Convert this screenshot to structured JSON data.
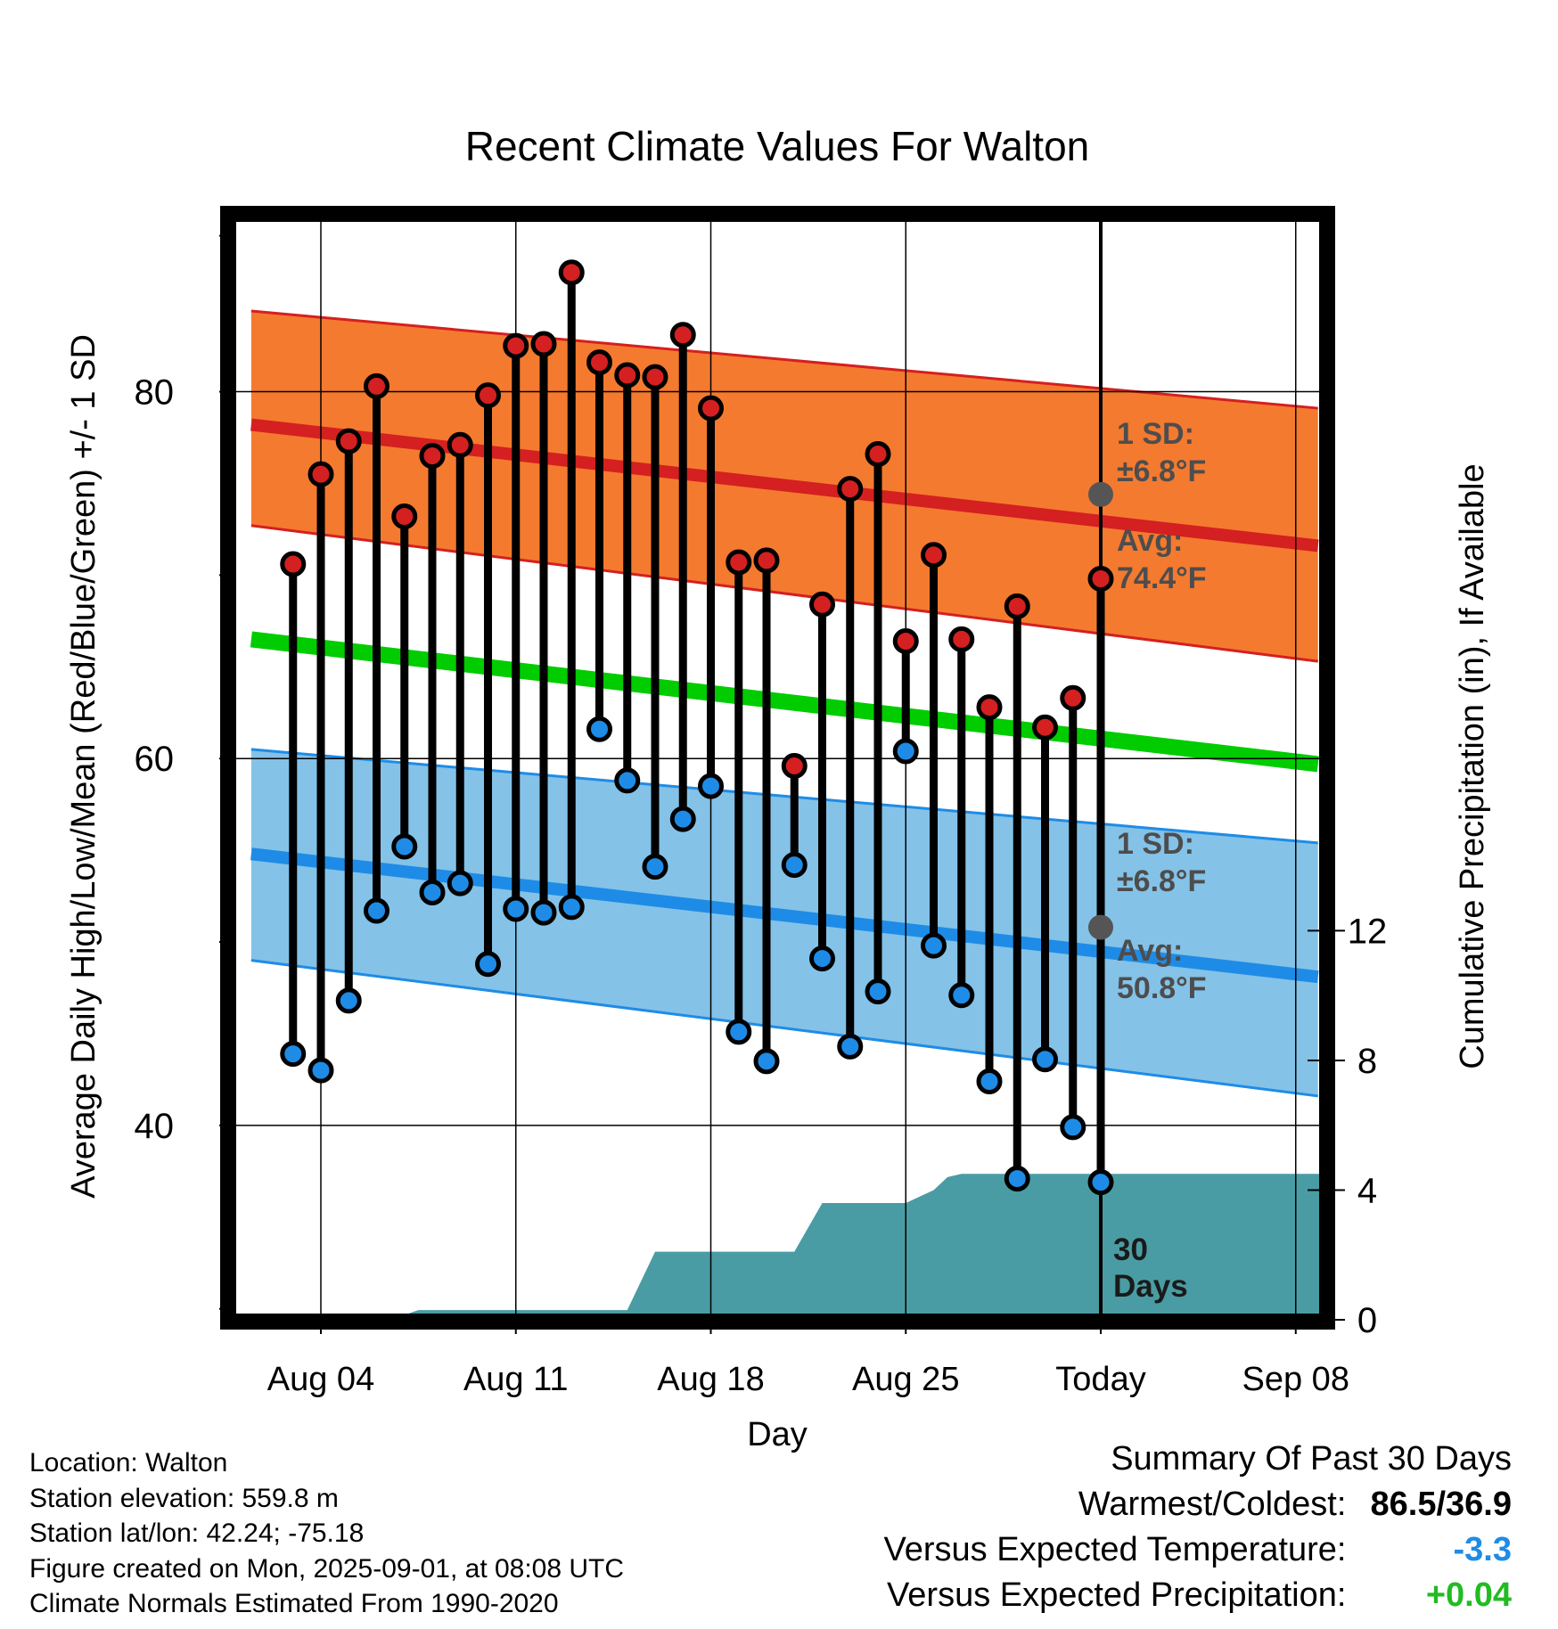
{
  "chart_data": {
    "type": "line",
    "title": "Recent Climate Values For Walton",
    "xlabel": "Day",
    "ylabel": "Average Daily High/Low/Mean (Red/Blue/Green) +/- 1 SD",
    "ylabel_right": "Cumulative Precipitation (in), If Available",
    "x_ticks": [
      "Aug 04",
      "Aug 11",
      "Aug 18",
      "Aug 25",
      "Today",
      "Sep 08"
    ],
    "y_ticks": [
      40,
      60,
      80
    ],
    "y_right_ticks": [
      0,
      4,
      8,
      12
    ],
    "ylim": [
      29.5,
      89.5
    ],
    "ylim_right": [
      0,
      34
    ],
    "days_label": "30\nDays",
    "normals": {
      "x": [
        -2.5,
        35.8
      ],
      "high_mean": [
        78.2,
        71.6
      ],
      "high_sd_upper": [
        84.4,
        79.1
      ],
      "high_sd_lower": [
        72.7,
        65.3
      ],
      "low_mean": [
        54.8,
        48.1
      ],
      "low_sd_upper": [
        60.5,
        55.4
      ],
      "low_sd_lower": [
        49.0,
        41.6
      ],
      "daily_mean": [
        66.5,
        59.7
      ]
    },
    "today_annotations": {
      "high": {
        "sd_label": "1 SD:",
        "sd_value": "±6.8°F",
        "avg_label": "Avg:",
        "avg_value": "74.4°F",
        "value": 74.4
      },
      "low": {
        "sd_label": "1 SD:",
        "sd_value": "±6.8°F",
        "avg_label": "Avg:",
        "avg_value": "50.8°F",
        "value": 50.8
      }
    },
    "series": [
      {
        "name": "High",
        "color": "#d42020",
        "values": [
          70.6,
          75.5,
          77.3,
          80.3,
          73.2,
          76.5,
          77.1,
          79.8,
          82.5,
          82.6,
          86.5,
          81.6,
          80.9,
          80.8,
          83.1,
          79.1,
          70.7,
          70.8,
          59.6,
          68.4,
          74.7,
          76.6,
          66.4,
          71.1,
          66.5,
          62.8,
          68.3,
          61.7,
          63.3,
          69.8
        ]
      },
      {
        "name": "Low",
        "color": "#1e8ce6",
        "values": [
          43.9,
          43.0,
          46.8,
          51.7,
          55.2,
          52.7,
          53.2,
          48.8,
          51.8,
          51.6,
          51.9,
          61.6,
          58.8,
          54.1,
          56.7,
          58.5,
          45.1,
          43.5,
          54.2,
          49.1,
          44.3,
          47.3,
          60.4,
          49.8,
          47.1,
          42.4,
          37.1,
          43.6,
          39.9,
          36.9
        ]
      }
    ],
    "precip": {
      "color": "#4a9ca4",
      "x": [
        2.5,
        3.5,
        8.0,
        9.0,
        10.0,
        11.0,
        12.0,
        15.5,
        16.0,
        17.0,
        18.0,
        19.0,
        21.0,
        22.0,
        22.5,
        23.0,
        24.0,
        27.5
      ],
      "values": [
        0.0,
        0.3,
        0.3,
        0.3,
        0.3,
        0.3,
        2.1,
        2.1,
        2.1,
        2.1,
        3.6,
        3.6,
        3.6,
        4.0,
        4.4,
        4.5,
        4.5,
        4.5
      ]
    }
  },
  "info": {
    "location": "Location: Walton",
    "elevation": "Station elevation: 559.8 m",
    "latlon": "Station lat/lon: 42.24; -75.18",
    "created": "Figure created on Mon, 2025-09-01, at 08:08 UTC",
    "normals": "Climate Normals Estimated From 1990-2020"
  },
  "summary": {
    "title": "Summary Of Past 30 Days",
    "warmest_label": "Warmest/Coldest:",
    "warmest_value": "86.5/36.9",
    "temp_label": "Versus Expected Temperature:",
    "temp_value": "-3.3",
    "temp_color": "#1e8ce6",
    "precip_label": "Versus Expected Precipitation:",
    "precip_value": "+0.04",
    "precip_color": "#22bb22"
  }
}
